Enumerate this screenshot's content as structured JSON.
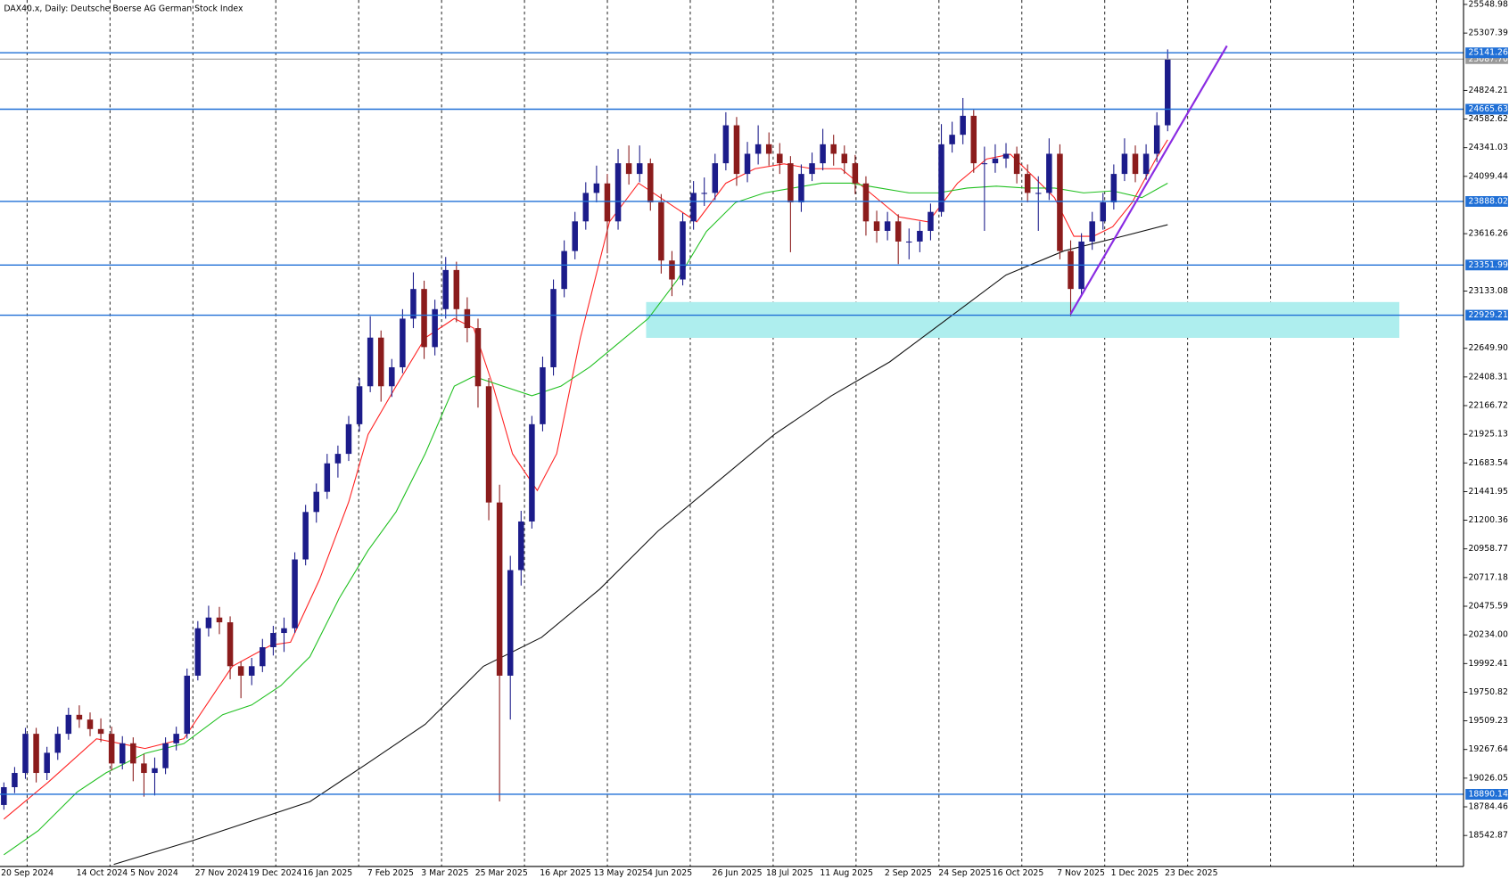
{
  "chart_data": {
    "type": "candlestick",
    "title": "DAX40.x, Daily:  Deutsche Boerse AG German Stock Index",
    "up_color": "#1c1c8a",
    "down_color": "#8b1c1c",
    "ylim": [
      18290,
      25570
    ],
    "yticks": [
      25548.98,
      25307.39,
      24824.21,
      24582.62,
      24341.03,
      24099.44,
      23616.26,
      23133.08,
      {
        "value": 22649.9,
        "label": "22649.90"
      },
      22408.31,
      22166.72,
      21925.13,
      21683.54,
      21441.95,
      21200.36,
      20958.77,
      20717.18,
      20475.59,
      {
        "value": 20234,
        "label": "20234.00"
      },
      19992.41,
      19750.82,
      19509.23,
      19267.64,
      19026.05,
      18784.46,
      18542.87
    ],
    "categories": [
      "20 Sep 2024",
      null,
      null,
      null,
      null,
      null,
      null,
      "14 Oct 2024",
      null,
      null,
      null,
      null,
      "5 Nov 2024",
      null,
      null,
      null,
      null,
      null,
      "27 Nov 2024",
      null,
      null,
      null,
      null,
      "19 Dec 2024",
      null,
      null,
      null,
      null,
      "16 Jan 2025",
      null,
      null,
      null,
      null,
      null,
      "7 Feb 2025",
      null,
      null,
      null,
      null,
      "3 Mar 2025",
      null,
      null,
      null,
      null,
      "25 Mar 2025",
      null,
      null,
      null,
      null,
      null,
      "16 Apr 2025",
      null,
      null,
      null,
      null,
      "13 May 2025",
      null,
      null,
      null,
      null,
      "4 Jun 2025",
      null,
      null,
      null,
      null,
      null,
      "26 Jun 2025",
      null,
      null,
      null,
      null,
      "18 Jul 2025",
      null,
      null,
      null,
      null,
      "11 Aug 2025",
      null,
      null,
      null,
      null,
      null,
      "2 Sep 2025",
      null,
      null,
      null,
      null,
      "24 Sep 2025",
      null,
      null,
      null,
      null,
      "16 Oct 2025",
      null,
      null,
      null,
      null,
      null,
      "7 Nov 2025",
      null,
      null,
      null,
      null,
      "1 Dec 2025",
      null,
      null,
      null,
      null,
      "23 Dec 2025"
    ],
    "ohlc": [
      [
        18800,
        18990,
        18760,
        18950
      ],
      [
        18950,
        19120,
        18900,
        19070
      ],
      [
        19070,
        19450,
        19020,
        19400
      ],
      [
        19400,
        19450,
        18990,
        19070
      ],
      [
        19070,
        19290,
        19010,
        19240
      ],
      [
        19240,
        19460,
        19180,
        19400
      ],
      [
        19400,
        19620,
        19350,
        19560
      ],
      [
        19560,
        19640,
        19450,
        19520
      ],
      [
        19520,
        19580,
        19380,
        19440
      ],
      [
        19440,
        19530,
        19330,
        19400
      ],
      [
        19400,
        19460,
        19090,
        19150
      ],
      [
        19150,
        19380,
        19100,
        19320
      ],
      [
        19320,
        19370,
        19000,
        19150
      ],
      [
        19150,
        19230,
        18870,
        19070
      ],
      [
        19070,
        19200,
        18880,
        19110
      ],
      [
        19110,
        19370,
        19060,
        19320
      ],
      [
        19320,
        19460,
        19260,
        19400
      ],
      [
        19400,
        19950,
        19360,
        19890
      ],
      [
        19890,
        20350,
        19850,
        20290
      ],
      [
        20290,
        20480,
        20220,
        20380
      ],
      [
        20380,
        20470,
        20240,
        20340
      ],
      [
        20340,
        20390,
        19860,
        19970
      ],
      [
        19970,
        20010,
        19700,
        19890
      ],
      [
        19890,
        20040,
        19810,
        19970
      ],
      [
        19970,
        20200,
        19920,
        20130
      ],
      [
        20130,
        20310,
        20060,
        20250
      ],
      [
        20250,
        20380,
        20090,
        20290
      ],
      [
        20290,
        20930,
        20250,
        20870
      ],
      [
        20870,
        21330,
        20820,
        21270
      ],
      [
        21270,
        21510,
        21180,
        21440
      ],
      [
        21440,
        21760,
        21380,
        21680
      ],
      [
        21680,
        21830,
        21560,
        21760
      ],
      [
        21760,
        22080,
        21700,
        22010
      ],
      [
        22010,
        22400,
        21950,
        22330
      ],
      [
        22330,
        22920,
        22280,
        22740
      ],
      [
        22740,
        22800,
        22200,
        22330
      ],
      [
        22330,
        22560,
        22240,
        22490
      ],
      [
        22490,
        22980,
        22440,
        22900
      ],
      [
        22900,
        23290,
        22820,
        23150
      ],
      [
        23150,
        23220,
        22560,
        22660
      ],
      [
        22660,
        23060,
        22590,
        22980
      ],
      [
        22980,
        23420,
        22900,
        23310
      ],
      [
        23310,
        23380,
        22870,
        22980
      ],
      [
        22980,
        23080,
        22700,
        22820
      ],
      [
        22820,
        22900,
        22150,
        22330
      ],
      [
        22330,
        22400,
        21200,
        21350
      ],
      [
        21350,
        21500,
        18830,
        19890
      ],
      [
        19890,
        20900,
        19520,
        20780
      ],
      [
        20780,
        21280,
        20650,
        21190
      ],
      [
        21190,
        22080,
        21130,
        22010
      ],
      [
        22010,
        22580,
        21950,
        22490
      ],
      [
        22490,
        23230,
        22420,
        23150
      ],
      [
        23150,
        23560,
        23080,
        23470
      ],
      [
        23470,
        23800,
        23400,
        23720
      ],
      [
        23720,
        24050,
        23650,
        23960
      ],
      [
        23960,
        24190,
        23880,
        24040
      ],
      [
        24040,
        24120,
        23450,
        23720
      ],
      [
        23720,
        24330,
        23650,
        24210
      ],
      [
        24210,
        24360,
        24030,
        24120
      ],
      [
        24120,
        24360,
        24050,
        24210
      ],
      [
        24210,
        24250,
        23810,
        23880
      ],
      [
        23880,
        23950,
        23280,
        23390
      ],
      [
        23390,
        23470,
        23090,
        23230
      ],
      [
        23230,
        23790,
        23180,
        23720
      ],
      [
        23720,
        24060,
        23650,
        23960
      ],
      [
        23960,
        24090,
        23850,
        23960
      ],
      [
        23960,
        24290,
        23900,
        24210
      ],
      [
        24210,
        24640,
        24150,
        24530
      ],
      [
        24530,
        24600,
        24020,
        24120
      ],
      [
        24120,
        24390,
        24050,
        24290
      ],
      [
        24290,
        24530,
        24200,
        24370
      ],
      [
        24370,
        24470,
        24190,
        24290
      ],
      [
        24290,
        24380,
        24120,
        24210
      ],
      [
        24210,
        24270,
        23460,
        23880
      ],
      [
        23880,
        24200,
        23800,
        24120
      ],
      [
        24120,
        24300,
        24060,
        24210
      ],
      [
        24210,
        24500,
        24150,
        24370
      ],
      [
        24370,
        24450,
        24190,
        24290
      ],
      [
        24290,
        24360,
        24120,
        24210
      ],
      [
        24210,
        24280,
        23950,
        24040
      ],
      [
        24040,
        24100,
        23600,
        23720
      ],
      [
        23720,
        23810,
        23540,
        23640
      ],
      [
        23640,
        23800,
        23560,
        23720
      ],
      [
        23720,
        23780,
        23360,
        23550
      ],
      [
        23550,
        23660,
        23400,
        23550
      ],
      [
        23550,
        23720,
        23460,
        23640
      ],
      [
        23640,
        23870,
        23560,
        23800
      ],
      [
        23800,
        24540,
        23760,
        24370
      ],
      [
        24370,
        24560,
        24300,
        24450
      ],
      [
        24450,
        24760,
        24370,
        24610
      ],
      [
        24610,
        24660,
        24130,
        24210
      ],
      [
        24210,
        24350,
        23640,
        24210
      ],
      [
        24210,
        24370,
        24130,
        24250
      ],
      [
        24250,
        24380,
        24170,
        24290
      ],
      [
        24290,
        24350,
        24040,
        24120
      ],
      [
        24120,
        24200,
        23880,
        23960
      ],
      [
        23960,
        24100,
        23640,
        23960
      ],
      [
        23960,
        24420,
        23900,
        24290
      ],
      [
        24290,
        24370,
        23400,
        23470
      ],
      [
        23470,
        23560,
        22920,
        23150
      ],
      [
        23150,
        23620,
        23090,
        23550
      ],
      [
        23550,
        23800,
        23480,
        23720
      ],
      [
        23720,
        23960,
        23650,
        23880
      ],
      [
        23880,
        24200,
        23820,
        24120
      ],
      [
        24120,
        24420,
        24060,
        24290
      ],
      [
        24290,
        24360,
        24050,
        24120
      ],
      [
        24120,
        24370,
        24070,
        24290
      ],
      [
        24290,
        24640,
        24220,
        24530
      ],
      [
        24530,
        25170,
        24480,
        25087.7
      ]
    ],
    "moving_averages": [
      {
        "color": "#ff2020",
        "x": [
          0,
          4.1,
          8.6,
          13.1,
          16.7,
          21.2,
          24.8,
          26.6,
          29.3,
          32,
          33.8,
          36.4,
          39.1,
          41.8,
          43.6,
          45.4,
          47.2,
          49.5,
          51.3,
          53.5,
          56.2,
          58.9,
          61.6,
          64.3,
          67,
          69.7,
          72.4,
          75,
          77.7,
          80.4,
          83.1,
          85.8,
          88.5,
          91.2,
          93.4,
          95.7,
          97.5,
          99.3,
          101.1,
          102.9,
          104.7,
          106.9,
          108
        ],
        "values": [
          18681,
          18991,
          19358,
          19276,
          19358,
          19969,
          20148,
          20172,
          20702,
          21354,
          21924,
          22331,
          22738,
          22901,
          22820,
          22331,
          21761,
          21451,
          21761,
          22738,
          23716,
          24042,
          23879,
          23716,
          24042,
          24164,
          24205,
          24164,
          24164,
          23960,
          23757,
          23716,
          24042,
          24246,
          24286,
          24083,
          23920,
          23594,
          23594,
          23675,
          23879,
          24246,
          24408
        ]
      },
      {
        "color": "#20c020",
        "x": [
          0,
          3.2,
          6.8,
          9.5,
          13.1,
          16.7,
          20.3,
          23,
          25.7,
          28.4,
          31.1,
          33.8,
          36.4,
          39.1,
          41.8,
          43.6,
          46.3,
          49,
          51.7,
          54.4,
          57.1,
          59.8,
          62.5,
          65.2,
          67.9,
          70.6,
          73.2,
          75.9,
          78.6,
          81.3,
          84,
          86.7,
          89.4,
          92.1,
          94.8,
          97.5,
          100.2,
          102.9,
          105.6,
          108
        ],
        "values": [
          18380,
          18584,
          18909,
          19072,
          19235,
          19317,
          19561,
          19643,
          19806,
          20050,
          20539,
          20946,
          21272,
          21761,
          22331,
          22413,
          22331,
          22250,
          22331,
          22494,
          22698,
          22901,
          23227,
          23635,
          23879,
          23960,
          24001,
          24042,
          24042,
          24001,
          23960,
          23960,
          24001,
          24017,
          24001,
          24001,
          23960,
          23977,
          23920,
          24042
        ]
      },
      {
        "color": "#111111",
        "x": [
          10.2,
          17.6,
          23,
          28.4,
          33.8,
          39.1,
          44.5,
          49.9,
          55.3,
          60.7,
          66.1,
          71.5,
          76.8,
          82.2,
          87.6,
          93,
          98.4,
          103.8,
          108
        ],
        "values": [
          18299,
          18502,
          18665,
          18828,
          19154,
          19480,
          19969,
          20213,
          20620,
          21109,
          21516,
          21924,
          22250,
          22535,
          22901,
          23268,
          23472,
          23594,
          23692
        ]
      }
    ],
    "levels": [
      25141.26,
      24665.63,
      23888.02,
      23351.99,
      22929.21,
      18890.14
    ],
    "level_color": "#1f6fd6",
    "current_price": {
      "value": 25087.7,
      "label": "25087.70"
    },
    "current_price_color": "#9a9a9a",
    "zone": {
      "x": [
        59.6,
        129.5
      ],
      "y": [
        22738,
        23040
      ],
      "color": "#aeeeee"
    },
    "trendline": {
      "x": [
        99,
        113.5
      ],
      "y": [
        22940,
        25200
      ],
      "color": "#8a2be2"
    }
  }
}
